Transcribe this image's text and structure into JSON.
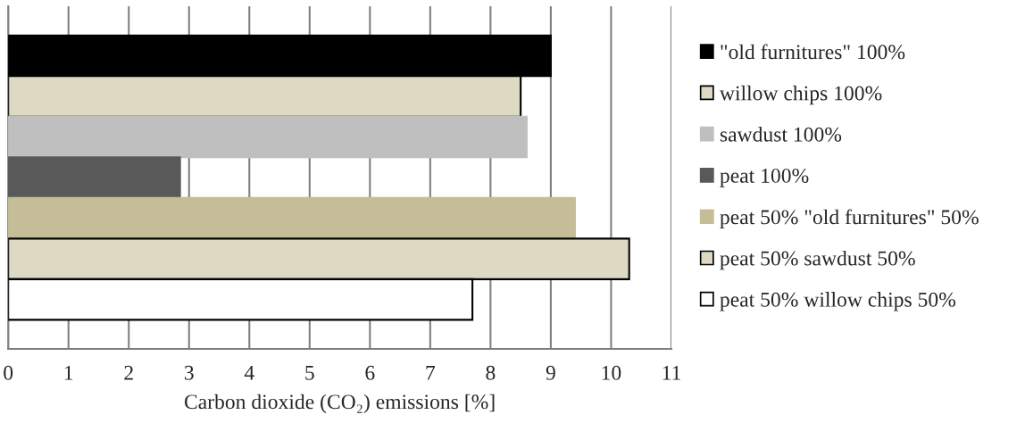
{
  "chart_data": {
    "type": "bar",
    "orientation": "horizontal",
    "categories": [
      null
    ],
    "xlabel": "Carbon dioxide (CO₂) emissions [%]",
    "xlim": [
      0,
      11
    ],
    "xticks": [
      0,
      1,
      2,
      3,
      4,
      5,
      6,
      7,
      8,
      9,
      10,
      11
    ],
    "grid": "x",
    "legend": "right",
    "series": [
      {
        "name": "\"old furnitures\" 100%",
        "color": "#000000",
        "values": [
          9.0
        ]
      },
      {
        "name": "willow chips 100%",
        "color": "#ddd9c3",
        "values": [
          8.5
        ]
      },
      {
        "name": "sawdust 100%",
        "color": "#bfbfbf",
        "values": [
          8.6
        ]
      },
      {
        "name": "peat 100%",
        "color": "#595959",
        "values": [
          2.85
        ]
      },
      {
        "name": "peat 50% \"old furnitures\" 50%",
        "color": "#c4bd97",
        "values": [
          9.4
        ]
      },
      {
        "name": "peat 50% sawdust 50%",
        "color": "#ddd9c3",
        "values": [
          10.3
        ]
      },
      {
        "name": "peat 50% willow chips 50%",
        "color": "#ffffff",
        "values": [
          7.7
        ]
      }
    ]
  }
}
